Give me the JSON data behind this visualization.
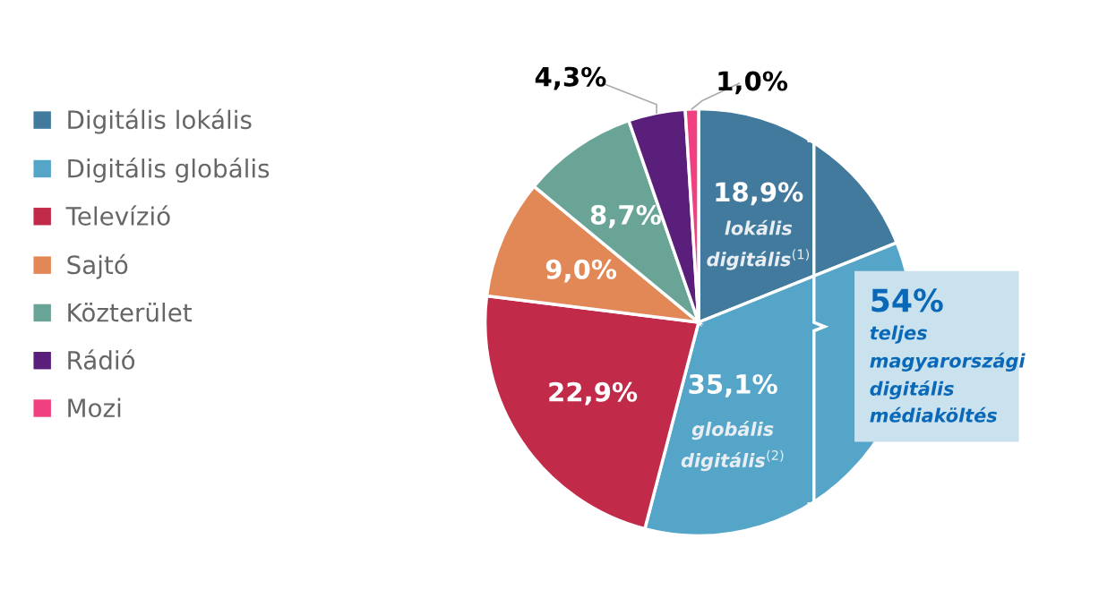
{
  "chart_data": {
    "type": "pie",
    "categories": [
      "Digitális lokális",
      "Digitális globális",
      "Televízió",
      "Sajtó",
      "Közterület",
      "Rádió",
      "Mozi"
    ],
    "values": [
      18.9,
      35.1,
      22.9,
      9.0,
      8.7,
      4.3,
      1.0
    ],
    "colors": [
      "#417a9c",
      "#55a5c8",
      "#c22a49",
      "#e18856",
      "#6aa496",
      "#5a1f7a",
      "#f0407f"
    ],
    "value_labels": [
      "18,9%",
      "35,1%",
      "22,9%",
      "9,0%",
      "8,7%",
      "4,3%",
      "1,0%"
    ],
    "annotations": [
      "lokális\ndigitális$^{(1)}$",
      "globális\ndigitális$^{(2)}$",
      "54%",
      "teljes\nmagyarországi\ndigitális\nmédiaköltés"
    ],
    "legend": "left"
  }
}
